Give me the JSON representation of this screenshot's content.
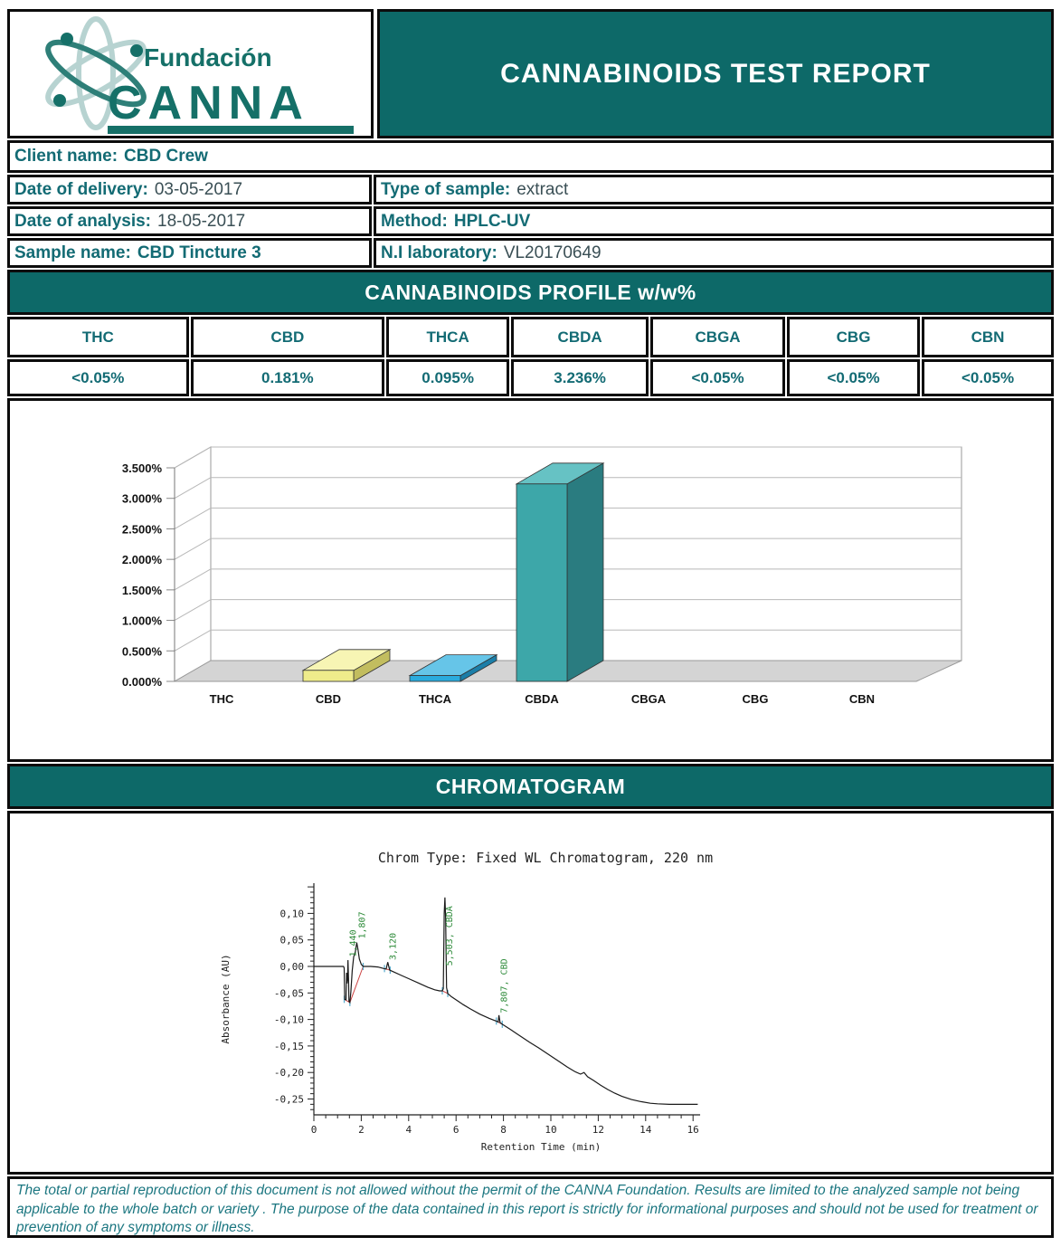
{
  "header": {
    "logo": {
      "brand_top": "Fundación",
      "brand_main": "CANNA"
    },
    "title": "CANNABINOIDS TEST REPORT"
  },
  "client_row": {
    "label": "Client name:",
    "value": "CBD Crew"
  },
  "info_rows": [
    {
      "label": "Date of delivery:",
      "value": "03-05-2017",
      "value_bold": false
    },
    {
      "label": "Type of sample:",
      "value": "extract",
      "value_bold": false
    },
    {
      "label": "Date of analysis:",
      "value": "18-05-2017",
      "value_bold": false
    },
    {
      "label": "Method:",
      "value": "HPLC-UV",
      "value_bold": true
    },
    {
      "label": "Sample name:",
      "value": "CBD Tincture 3",
      "value_bold": true
    },
    {
      "label": "N.I laboratory:",
      "value": "VL20170649",
      "value_bold": false
    }
  ],
  "profile": {
    "banner": "CANNABINOIDS PROFILE w/w%",
    "columns": [
      "THC",
      "CBD",
      "THCA",
      "CBDA",
      "CBGA",
      "CBG",
      "CBN"
    ],
    "values": [
      "<0.05%",
      "0.181%",
      "0.095%",
      "3.236%",
      "<0.05%",
      "<0.05%",
      "<0.05%"
    ]
  },
  "chromatogram_banner": "CHROMATOGRAM",
  "footer": {
    "disclaimer": "The total or partial reproduction of this document is not allowed without the permit of the CANNA Foundation. Results are limited to the analyzed sample not being applicable to the whole batch or variety . The purpose of the data contained in this report is strictly for informational purposes and should not be used for treatment or prevention of any symptoms or illness."
  },
  "colors": {
    "teal_banner": "#0d6968",
    "teal_text": "#136b74",
    "value_text": "#3a4f55",
    "footer_text": "#1b7680"
  },
  "chart_data": [
    {
      "type": "bar",
      "categories": [
        "THC",
        "CBD",
        "THCA",
        "CBDA",
        "CBGA",
        "CBG",
        "CBN"
      ],
      "values": [
        0,
        0.181,
        0.095,
        3.236,
        0,
        0,
        0
      ],
      "title": "",
      "xlabel": "",
      "ylabel": "",
      "ylim": [
        0,
        3.5
      ],
      "ytick_labels": [
        "0.000%",
        "0.500%",
        "1.000%",
        "1.500%",
        "2.000%",
        "2.500%",
        "3.000%",
        "3.500%"
      ],
      "grid": true,
      "style": "3d",
      "floor_color": "#d4d4d4",
      "bar_colors": {
        "CBD": {
          "front": "#efec8b",
          "top": "#f7f5b4",
          "side": "#c2bd5f"
        },
        "THCA": {
          "front": "#2aabdd",
          "top": "#66c5e8",
          "side": "#1b7ea8"
        },
        "CBDA": {
          "front": "#3da7a9",
          "top": "#66c2c4",
          "side": "#2a7c80"
        }
      }
    },
    {
      "type": "line",
      "title": "Chrom Type: Fixed WL Chromatogram, 220 nm",
      "xlabel": "Retention Time (min)",
      "ylabel": "Absorbance (AU)",
      "xlim": [
        0,
        16.2
      ],
      "xticks": [
        0,
        2,
        4,
        6,
        8,
        10,
        12,
        14,
        16
      ],
      "ytick_labels": [
        "0,10",
        "0,05",
        "0,00",
        "-0,05",
        "-0,10",
        "-0,15",
        "-0,20",
        "-0,25"
      ],
      "ytick_values": [
        0.1,
        0.05,
        0,
        -0.05,
        -0.1,
        -0.15,
        -0.2,
        -0.25
      ],
      "line_color": "#1a1a1a",
      "baseline_color": "#cc4444",
      "marker_color": "#55aacc",
      "label_color": "#2e8b3a",
      "points": [
        [
          0,
          0
        ],
        [
          1.25,
          0
        ],
        [
          1.28,
          -0.003
        ],
        [
          1.3,
          -0.062
        ],
        [
          1.36,
          -0.063
        ],
        [
          1.38,
          -0.012
        ],
        [
          1.4,
          -0.032
        ],
        [
          1.42,
          -0.025
        ],
        [
          1.44,
          0.012
        ],
        [
          1.46,
          -0.022
        ],
        [
          1.48,
          -0.066
        ],
        [
          1.52,
          -0.068
        ],
        [
          1.56,
          -0.048
        ],
        [
          1.62,
          -0.008
        ],
        [
          1.68,
          0.018
        ],
        [
          1.75,
          0.028
        ],
        [
          1.81,
          0.045
        ],
        [
          1.86,
          0.033
        ],
        [
          1.92,
          0.014
        ],
        [
          2,
          0.004
        ],
        [
          2.08,
          0
        ],
        [
          2.4,
          0
        ],
        [
          2.7,
          -0.001
        ],
        [
          2.95,
          -0.004
        ],
        [
          3.05,
          -0.005
        ],
        [
          3.12,
          0.008
        ],
        [
          3.2,
          -0.007
        ],
        [
          3.4,
          -0.011
        ],
        [
          3.7,
          -0.017
        ],
        [
          4,
          -0.023
        ],
        [
          4.4,
          -0.031
        ],
        [
          4.8,
          -0.039
        ],
        [
          5.1,
          -0.044
        ],
        [
          5.3,
          -0.046
        ],
        [
          5.42,
          -0.046
        ],
        [
          5.46,
          -0.042
        ],
        [
          5.5,
          0.1
        ],
        [
          5.53,
          0.13
        ],
        [
          5.56,
          0.09
        ],
        [
          5.6,
          -0.04
        ],
        [
          5.65,
          -0.051
        ],
        [
          5.8,
          -0.057
        ],
        [
          6,
          -0.063
        ],
        [
          6.3,
          -0.072
        ],
        [
          6.6,
          -0.08
        ],
        [
          7,
          -0.09
        ],
        [
          7.4,
          -0.098
        ],
        [
          7.7,
          -0.103
        ],
        [
          7.78,
          -0.105
        ],
        [
          7.81,
          -0.092
        ],
        [
          7.86,
          -0.106
        ],
        [
          7.95,
          -0.109
        ],
        [
          8.3,
          -0.119
        ],
        [
          8.7,
          -0.131
        ],
        [
          9.1,
          -0.143
        ],
        [
          9.5,
          -0.154
        ],
        [
          9.9,
          -0.166
        ],
        [
          10.3,
          -0.178
        ],
        [
          10.7,
          -0.19
        ],
        [
          11,
          -0.198
        ],
        [
          11.25,
          -0.203
        ],
        [
          11.4,
          -0.2
        ],
        [
          11.55,
          -0.208
        ],
        [
          11.8,
          -0.215
        ],
        [
          12.1,
          -0.224
        ],
        [
          12.4,
          -0.232
        ],
        [
          12.7,
          -0.239
        ],
        [
          13,
          -0.245
        ],
        [
          13.4,
          -0.251
        ],
        [
          13.8,
          -0.255
        ],
        [
          14.2,
          -0.258
        ],
        [
          14.5,
          -0.259
        ],
        [
          15,
          -0.26
        ],
        [
          16.2,
          -0.26
        ]
      ],
      "baselines": [
        [
          [
            1.28,
            -0.062
          ],
          [
            1.52,
            -0.068
          ],
          [
            2.08,
            0
          ]
        ],
        [
          [
            2.98,
            -0.004
          ],
          [
            3.22,
            -0.007
          ]
        ],
        [
          [
            5.42,
            -0.046
          ],
          [
            5.65,
            -0.051
          ]
        ],
        [
          [
            7.7,
            -0.103
          ],
          [
            7.95,
            -0.109
          ]
        ]
      ],
      "peak_labels": [
        {
          "t": 1.44,
          "au": 0.018,
          "text": "1,440"
        },
        {
          "t": 1.807,
          "au": 0.052,
          "text": "1,807"
        },
        {
          "t": 3.12,
          "au": 0.012,
          "text": "3,120"
        },
        {
          "t": 5.503,
          "au": 0.001,
          "text": "5,503, CBDA"
        },
        {
          "t": 7.807,
          "au": -0.088,
          "text": "7,807, CBD"
        }
      ]
    }
  ]
}
